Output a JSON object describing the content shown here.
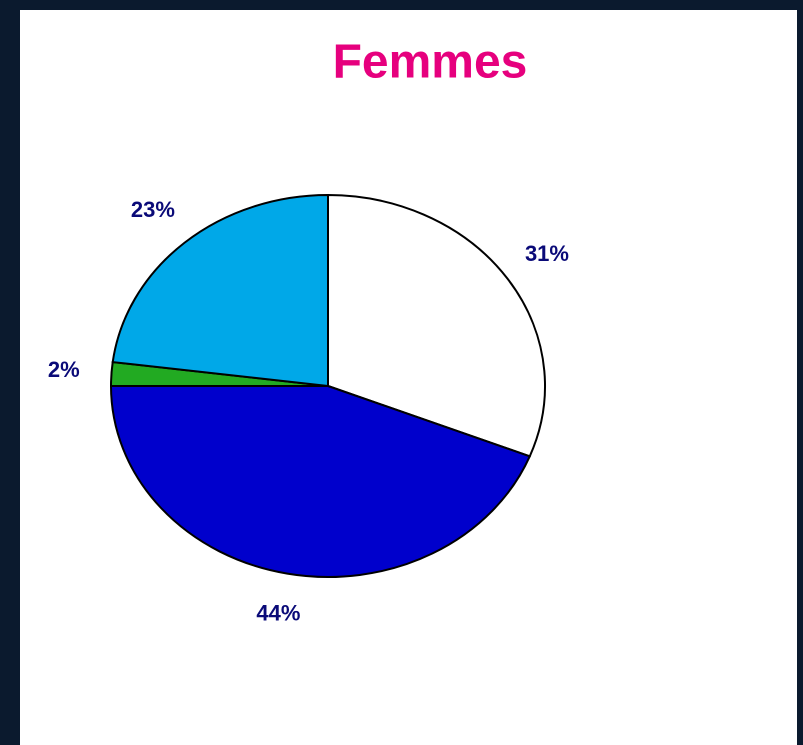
{
  "chart_data": {
    "type": "pie",
    "title": "Femmes",
    "categories": [
      null,
      null,
      null,
      null
    ],
    "values": [
      31,
      44,
      2,
      23
    ],
    "value_labels": [
      "31%",
      "44%",
      "2%",
      "23%"
    ],
    "colors": [
      "#ffffff",
      "#0000cc",
      "#22aa22",
      "#00a8e8"
    ],
    "title_color": "#e6007e",
    "label_color": "#0a0a78"
  }
}
